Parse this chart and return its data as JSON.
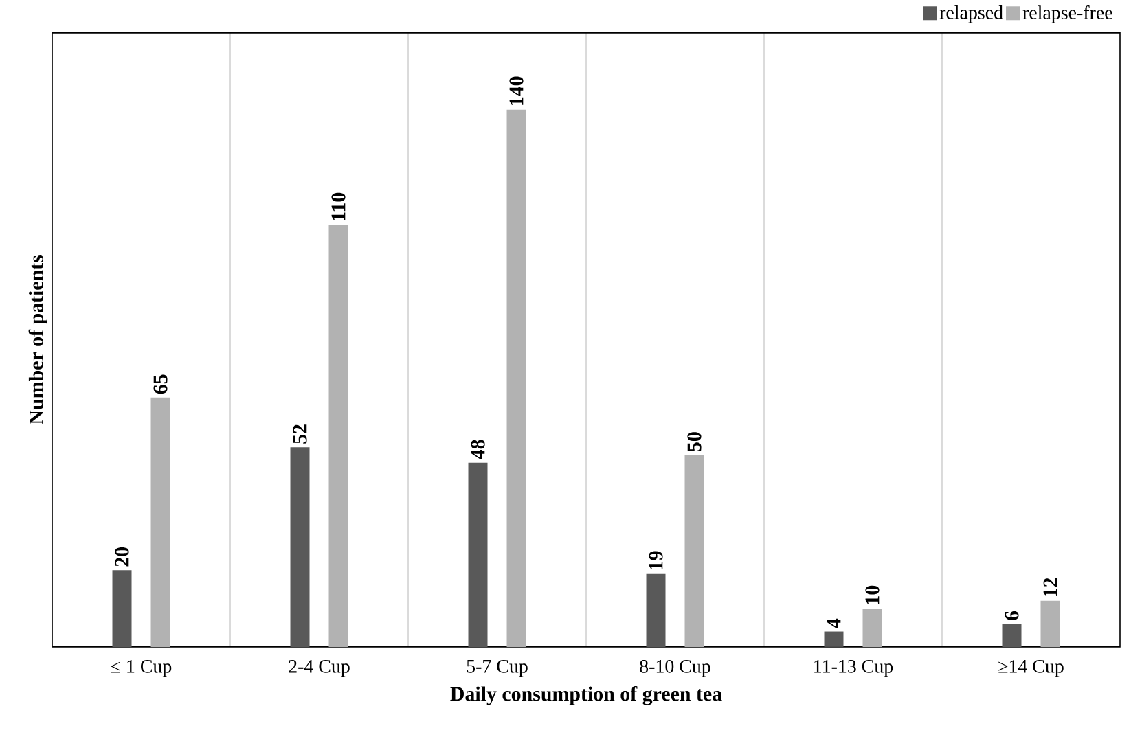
{
  "chart_data": {
    "type": "bar",
    "xlabel": "Daily consumption of green tea",
    "ylabel": "Number of patients",
    "categories": [
      "≤ 1 Cup",
      "2-4 Cup",
      "5-7 Cup",
      "8-10 Cup",
      "11-13 Cup",
      "≥14 Cup"
    ],
    "series": [
      {
        "name": "relapsed",
        "color": "#595959",
        "values": [
          20,
          52,
          48,
          19,
          4,
          6
        ]
      },
      {
        "name": "relapse-free",
        "color": "#b2b2b2",
        "values": [
          65,
          110,
          140,
          50,
          10,
          12
        ]
      }
    ],
    "ylim": [
      0,
      160
    ],
    "data_labels": true,
    "grid": "x",
    "legend": "top right"
  }
}
